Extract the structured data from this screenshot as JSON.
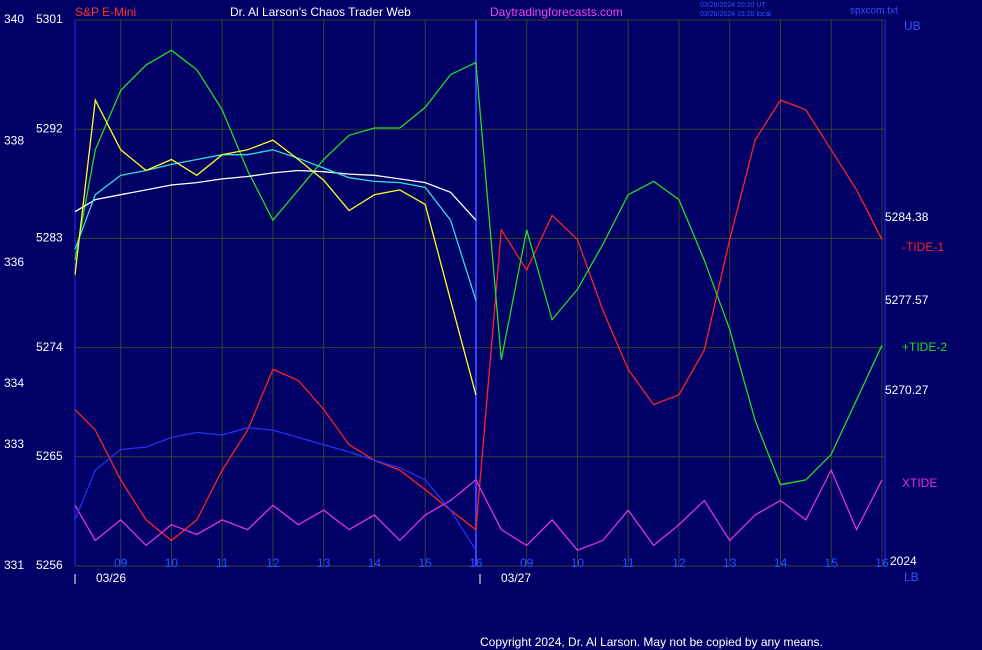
{
  "header": {
    "symbol": "S&P E-Mini",
    "site": "Dr. Al Larson's Chaos Trader Web",
    "url": "Daytradingforecasts.com",
    "stamp_ut": "03/26/2024 20:20 UT",
    "stamp_local": "03/26/2024 15:20 local",
    "file": "spxcom.txt",
    "upper_bound": "UB",
    "lower_bound": "LB",
    "year": "2024",
    "dates": [
      "03/26",
      "03/27"
    ],
    "copyright": "Copyright 2024, Dr. Al Larson. May not be copied by any means."
  },
  "chart_data": {
    "type": "line",
    "x": [
      8.1,
      8.5,
      9,
      9.5,
      10,
      10.5,
      11,
      11.5,
      12,
      12.5,
      13,
      13.5,
      14,
      14.5,
      15,
      15.5,
      16,
      16.5,
      17,
      17.5,
      18,
      18.5,
      19,
      19.5,
      20,
      20.5,
      21,
      21.5,
      22,
      22.5,
      23,
      23.5,
      24
    ],
    "xlim": [
      8.1,
      24.06
    ],
    "xticks": [
      {
        "value": 9,
        "label": "09"
      },
      10,
      11,
      12,
      13,
      14,
      15,
      16,
      {
        "value": 17,
        "label": "09"
      },
      {
        "value": 18,
        "label": "10"
      },
      {
        "value": 19,
        "label": "11"
      },
      {
        "value": 20,
        "label": "12"
      },
      {
        "value": 21,
        "label": "13"
      },
      {
        "value": 22,
        "label": "14"
      },
      {
        "value": 23,
        "label": "15"
      },
      {
        "value": 24,
        "label": "16"
      }
    ],
    "ylim": [
      5256,
      5301
    ],
    "yticks": [
      5301,
      5292,
      5283,
      5274,
      5265,
      5256
    ],
    "y2lim": [
      331,
      340
    ],
    "y2ticks": [
      340,
      338,
      336,
      334,
      333,
      331
    ],
    "grid": true,
    "series": [
      {
        "color": "#ff2222",
        "name": "-TIDE-1",
        "value_label": "5284.38",
        "values": [
          5268.9,
          5267.2,
          5263.1,
          5259.8,
          5258.1,
          5259.8,
          5263.9,
          5267.2,
          5272.2,
          5271.3,
          5268.9,
          5266.0,
          5264.7,
          5263.9,
          5262.3,
          5260.6,
          5259.0,
          5283.7,
          5280.4,
          5284.9,
          5282.9,
          5277.1,
          5272.2,
          5269.3,
          5270.1,
          5273.8,
          5282.9,
          5291.1,
          5294.4,
          5293.6,
          5290.3,
          5287.0,
          5282.9
        ]
      },
      {
        "color": "#22dd22",
        "name": "+TIDE-2",
        "value_label": "5277.57",
        "values": [
          5281.2,
          5290.3,
          5295.2,
          5297.3,
          5298.5,
          5296.9,
          5293.6,
          5288.6,
          5284.5,
          5287.0,
          5289.5,
          5291.5,
          5292.1,
          5292.1,
          5293.8,
          5296.5,
          5297.5,
          5273.0,
          5283.7,
          5276.3,
          5278.8,
          5282.5,
          5286.6,
          5287.7,
          5286.2,
          5281.2,
          5275.5,
          5268.0,
          5262.7,
          5263.1,
          5265.2,
          5269.7,
          5274.2
        ]
      },
      {
        "color": "#dd33dd",
        "name": "XTIDE",
        "value_label": "5270.27",
        "values": [
          5261.0,
          5258.1,
          5259.8,
          5257.7,
          5259.4,
          5258.6,
          5259.8,
          5259.0,
          5261.0,
          5259.4,
          5260.6,
          5259.0,
          5260.2,
          5258.1,
          5260.2,
          5261.4,
          5263.1,
          5259.0,
          5257.7,
          5259.8,
          5257.3,
          5258.1,
          5260.6,
          5257.7,
          5259.4,
          5261.4,
          5258.1,
          5260.2,
          5261.4,
          5259.8,
          5263.9,
          5259.0,
          5263.1
        ]
      },
      {
        "color": "#2233ee",
        "values": [
          5259.8,
          5263.9,
          5265.6,
          5265.8,
          5266.6,
          5267.0,
          5266.8,
          5267.4,
          5267.2,
          5266.6,
          5266.0,
          5265.4,
          5264.7,
          5264.1,
          5263.1,
          5260.6,
          5257.3,
          null,
          null,
          null,
          null,
          null,
          null,
          null,
          null,
          null,
          null,
          null,
          null,
          null,
          null,
          null,
          null
        ]
      },
      {
        "color": "#ffffff",
        "values": [
          5285.2,
          5286.2,
          5286.6,
          5287.0,
          5287.4,
          5287.6,
          5287.9,
          5288.1,
          5288.4,
          5288.6,
          5288.5,
          5288.3,
          5288.2,
          5287.9,
          5287.6,
          5286.8,
          5284.5,
          null,
          null,
          null,
          null,
          null,
          null,
          null,
          null,
          null,
          null,
          null,
          null,
          null,
          null,
          null,
          null
        ]
      },
      {
        "color": "#33dddd",
        "values": [
          5282.1,
          5286.6,
          5288.2,
          5288.6,
          5289.1,
          5289.5,
          5289.9,
          5289.9,
          5290.3,
          5289.6,
          5288.8,
          5288.0,
          5287.7,
          5287.6,
          5287.2,
          5284.5,
          5277.9,
          null,
          null,
          null,
          null,
          null,
          null,
          null,
          null,
          null,
          null,
          null,
          null,
          null,
          null,
          null,
          null
        ]
      },
      {
        "color": "#ffff22",
        "values": [
          5280.0,
          5294.4,
          5290.3,
          5288.6,
          5289.5,
          5288.2,
          5289.9,
          5290.3,
          5291.1,
          5289.5,
          5287.8,
          5285.3,
          5286.6,
          5287.0,
          5285.8,
          5277.9,
          5270.1,
          null,
          null,
          null,
          null,
          null,
          null,
          null,
          null,
          null,
          null,
          null,
          null,
          null,
          null,
          null,
          null
        ]
      }
    ]
  }
}
